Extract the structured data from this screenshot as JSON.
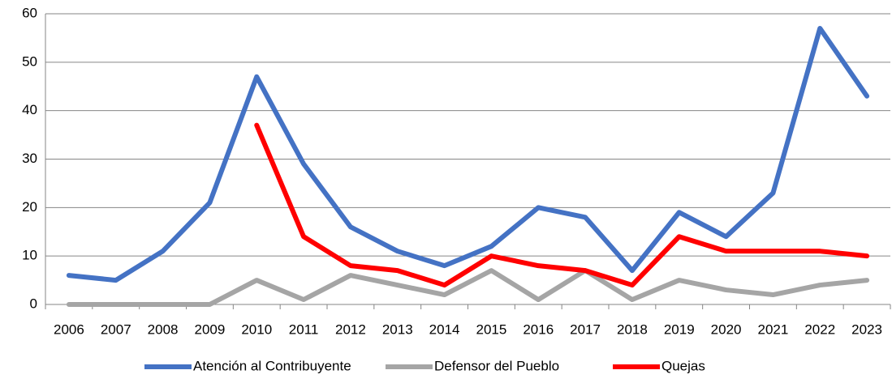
{
  "chart_data": {
    "type": "line",
    "categories": [
      "2006",
      "2007",
      "2008",
      "2009",
      "2010",
      "2011",
      "2012",
      "2013",
      "2014",
      "2015",
      "2016",
      "2017",
      "2018",
      "2019",
      "2020",
      "2021",
      "2022",
      "2023"
    ],
    "series": [
      {
        "name": "Atención al Contribuyente",
        "color": "#4472c4",
        "values": [
          6,
          5,
          11,
          21,
          47,
          29,
          16,
          11,
          8,
          12,
          20,
          18,
          7,
          19,
          14,
          23,
          57,
          43
        ]
      },
      {
        "name": "Defensor del Pueblo",
        "color": "#a5a5a5",
        "values": [
          0,
          0,
          0,
          0,
          5,
          1,
          6,
          4,
          2,
          7,
          1,
          7,
          1,
          5,
          3,
          2,
          4,
          5
        ]
      },
      {
        "name": "Quejas",
        "color": "#ff0000",
        "values": [
          null,
          null,
          null,
          null,
          37,
          14,
          8,
          7,
          4,
          10,
          8,
          7,
          4,
          14,
          11,
          11,
          11,
          10
        ]
      }
    ],
    "ylim": [
      0,
      60
    ],
    "yticks": [
      0,
      10,
      20,
      30,
      40,
      50,
      60
    ],
    "grid": true,
    "legend": "bottom"
  }
}
